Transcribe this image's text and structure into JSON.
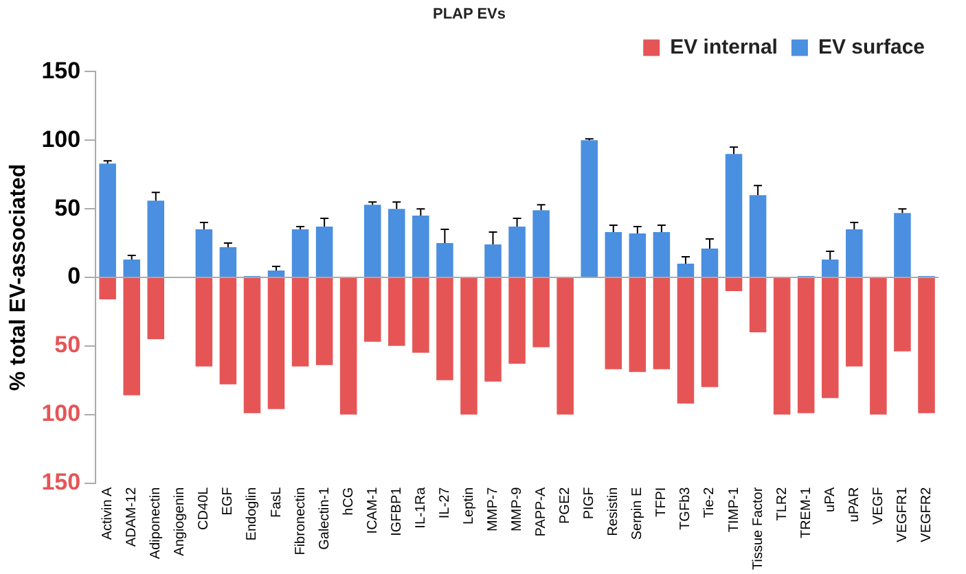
{
  "chart_data": {
    "type": "bar",
    "title": "PLAP EVs",
    "ylabel": "% total EV-associated",
    "categories": [
      "Activin A",
      "ADAM-12",
      "Adiponectin",
      "Angiogenin",
      "CD40L",
      "EGF",
      "Endoglin",
      "FasL",
      "Fibronectin",
      "Galectin-1",
      "hCG",
      "ICAM-1",
      "IGFBP1",
      "IL-1Ra",
      "IL-27",
      "Leptin",
      "MMP-7",
      "MMP-9",
      "PAPP-A",
      "PGE2",
      "PIGF",
      "Resistin",
      "Serpin E",
      "TFPI",
      "TGFb3",
      "Tie-2",
      "TIMP-1",
      "Tissue Factor",
      "TLR2",
      "TREM-1",
      "uPA",
      "uPAR",
      "VEGF",
      "VEGFR1",
      "VEGFR2"
    ],
    "series": [
      {
        "name": "EV internal",
        "color": "#e65555",
        "values": [
          -16,
          -86,
          -45,
          0,
          -65,
          -78,
          -99,
          -96,
          -65,
          -64,
          -100,
          -47,
          -50,
          -55,
          -75,
          -100,
          -76,
          -63,
          -51,
          -100,
          0,
          -67,
          -69,
          -67,
          -92,
          -80,
          -10,
          -40,
          -100,
          -99,
          -88,
          -65,
          -100,
          -54,
          -99
        ]
      },
      {
        "name": "EV surface",
        "color": "#4a8fe0",
        "values": [
          83,
          13,
          56,
          0,
          35,
          22,
          1,
          5,
          35,
          37,
          0,
          53,
          50,
          45,
          25,
          0,
          24,
          37,
          49,
          0,
          100,
          33,
          32,
          33,
          10,
          21,
          90,
          60,
          0,
          1,
          13,
          35,
          0,
          47,
          1
        ],
        "errors": [
          [
            83,
            85
          ],
          [
            13,
            16
          ],
          [
            56,
            62
          ],
          null,
          [
            35,
            40
          ],
          [
            22,
            25
          ],
          null,
          [
            5,
            8
          ],
          [
            35,
            37
          ],
          [
            37,
            43
          ],
          null,
          [
            53,
            55
          ],
          [
            50,
            55
          ],
          [
            45,
            50
          ],
          [
            25,
            35
          ],
          null,
          [
            24,
            33
          ],
          [
            37,
            43
          ],
          [
            49,
            53
          ],
          null,
          [
            100,
            101
          ],
          [
            33,
            38
          ],
          [
            32,
            37
          ],
          [
            33,
            38
          ],
          [
            10,
            15
          ],
          [
            21,
            28
          ],
          [
            90,
            95
          ],
          [
            60,
            67
          ],
          null,
          null,
          [
            13,
            19
          ],
          [
            35,
            40
          ],
          null,
          [
            47,
            50
          ],
          null
        ]
      }
    ],
    "stacked": true,
    "ylim": [
      -150,
      150
    ],
    "yticks": [
      150,
      100,
      50,
      0,
      {
        "value": -50,
        "label": "50"
      },
      {
        "value": -100,
        "label": "100"
      },
      {
        "value": -150,
        "label": "150"
      }
    ],
    "grid": false,
    "ref_lines": [
      {
        "axis": "y",
        "value": 0,
        "color": "#aaaaaa"
      }
    ],
    "legend": "top right"
  }
}
